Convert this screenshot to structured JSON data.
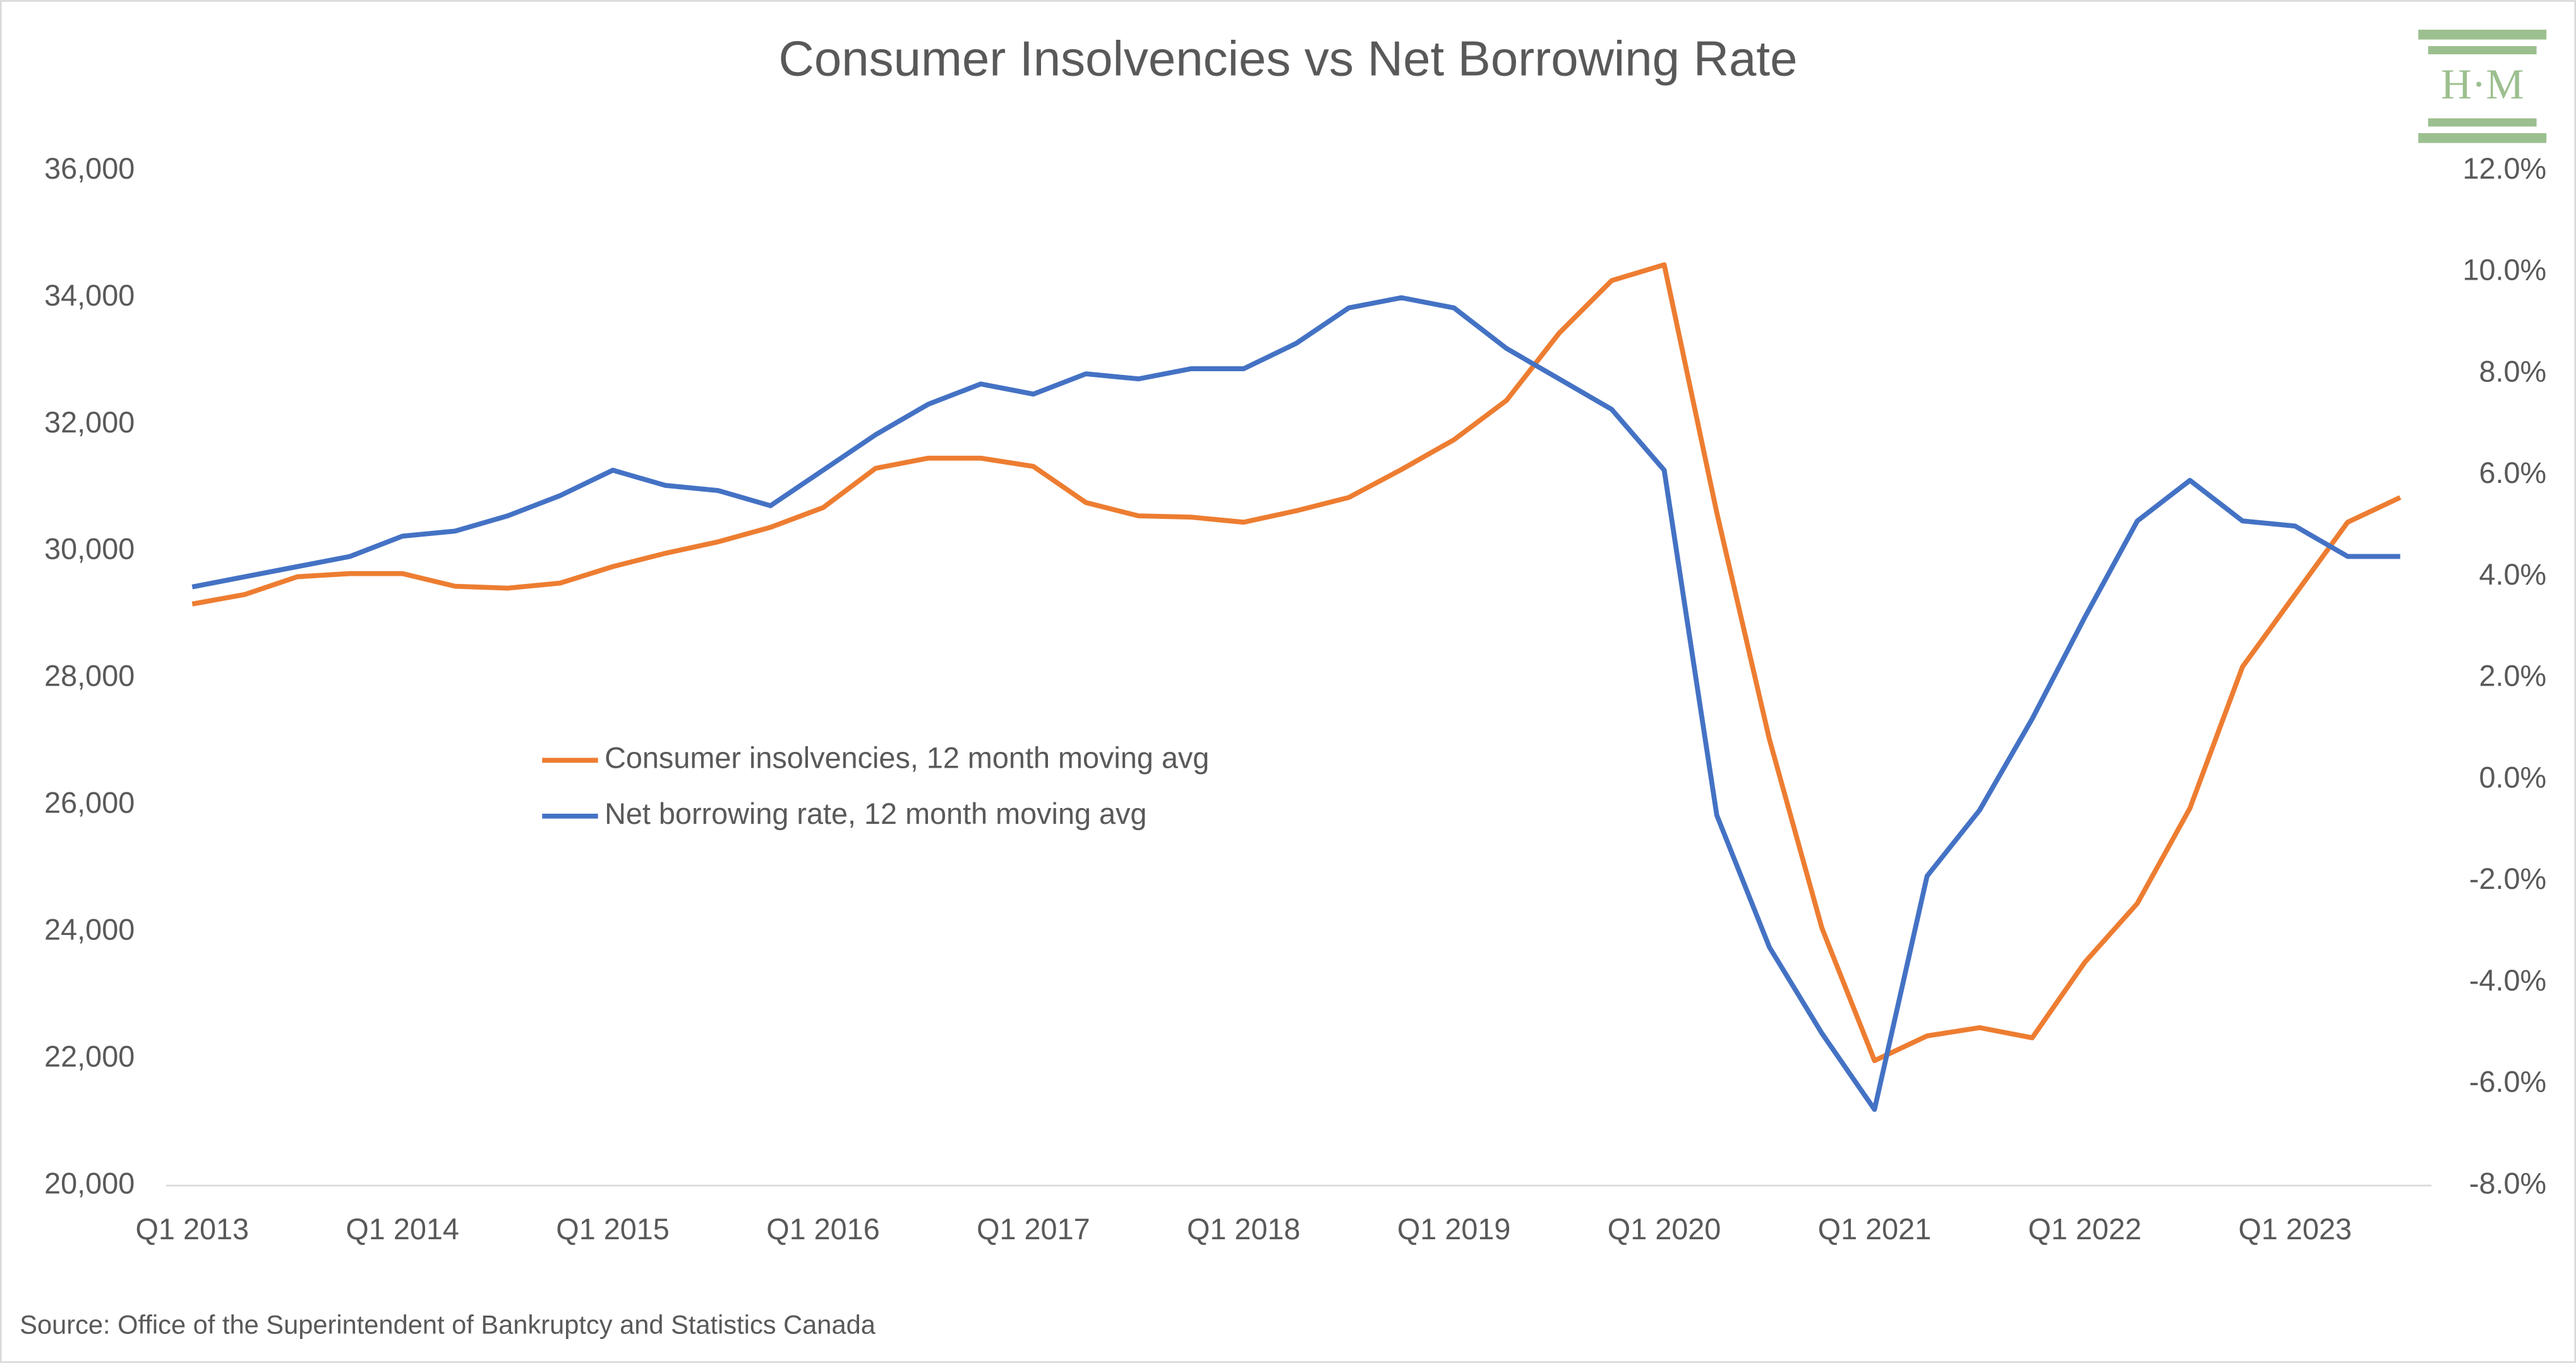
{
  "chart_data": {
    "type": "line",
    "title": "Consumer Insolvencies vs Net Borrowing Rate",
    "source": "Source: Office of the Superintendent of Bankruptcy and Statistics Canada",
    "logo_text": "H·M",
    "categories": [
      "Q1 2013",
      null,
      null,
      null,
      "Q1 2014",
      null,
      null,
      null,
      "Q1 2015",
      null,
      null,
      null,
      "Q1 2016",
      null,
      null,
      null,
      "Q1 2017",
      null,
      null,
      null,
      "Q1 2018",
      null,
      null,
      null,
      "Q1 2019",
      null,
      null,
      null,
      "Q1 2020",
      null,
      null,
      null,
      "Q1 2021",
      null,
      null,
      null,
      "Q1 2022",
      null,
      null,
      null,
      "Q1 2023",
      null,
      null
    ],
    "series": [
      {
        "name": "Consumer insolvencies, 12 month moving avg",
        "color": "#ED7D31",
        "values": [
          29170,
          29320,
          29600,
          29650,
          29650,
          29450,
          29420,
          29500,
          29760,
          29970,
          30150,
          30380,
          30690,
          31310,
          31470,
          31470,
          31340,
          30770,
          30560,
          30540,
          30460,
          30640,
          30850,
          31290,
          31760,
          32380,
          33440,
          34270,
          34520,
          30610,
          27040,
          24060,
          21970,
          22360,
          22490,
          22330,
          23520,
          24450,
          25950,
          28180,
          29320,
          30460,
          30850
        ]
      },
      {
        "name": "Net borrowing rate, 12 month moving avg",
        "color": "#4472C4",
        "axis": "y2",
        "values": [
          3.8,
          4.0,
          4.2,
          4.4,
          4.8,
          4.9,
          5.2,
          5.6,
          6.1,
          5.8,
          5.7,
          5.4,
          6.1,
          6.8,
          7.4,
          7.8,
          7.6,
          8.0,
          7.9,
          8.1,
          8.1,
          8.6,
          9.3,
          9.5,
          9.3,
          8.5,
          7.9,
          7.3,
          6.1,
          -0.7,
          -3.3,
          -5.0,
          -6.5,
          -1.9,
          -0.6,
          1.2,
          3.2,
          5.1,
          5.9,
          5.1,
          5.0,
          4.4,
          4.4
        ]
      }
    ],
    "ylim": [
      20000,
      36000
    ],
    "yticks": [
      {
        "value": 20000,
        "label": "20,000"
      },
      {
        "value": 22000,
        "label": "22,000"
      },
      {
        "value": 24000,
        "label": "24,000"
      },
      {
        "value": 26000,
        "label": "26,000"
      },
      {
        "value": 28000,
        "label": "28,000"
      },
      {
        "value": 30000,
        "label": "30,000"
      },
      {
        "value": 32000,
        "label": "32,000"
      },
      {
        "value": 34000,
        "label": "34,000"
      },
      {
        "value": 36000,
        "label": "36,000"
      }
    ],
    "y2lim": [
      -8,
      12
    ],
    "y2ticks": [
      {
        "value": -8,
        "label": "-8.0%"
      },
      {
        "value": -6,
        "label": "-6.0%"
      },
      {
        "value": -4,
        "label": "-4.0%"
      },
      {
        "value": -2,
        "label": "-2.0%"
      },
      {
        "value": 0,
        "label": "0.0%"
      },
      {
        "value": 2,
        "label": "2.0%"
      },
      {
        "value": 4,
        "label": "4.0%"
      },
      {
        "value": 6,
        "label": "6.0%"
      },
      {
        "value": 8,
        "label": "8.0%"
      },
      {
        "value": 10,
        "label": "10.0%"
      },
      {
        "value": 12,
        "label": "12.0%"
      }
    ],
    "grid": false
  }
}
